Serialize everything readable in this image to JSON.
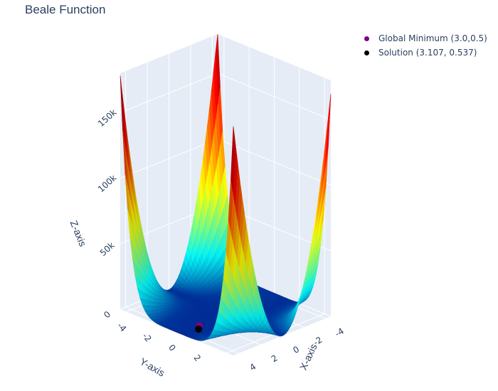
{
  "chart_data": {
    "type": "surface3d",
    "title": "Beale Function",
    "function": "(1.5 - x + x*y)^2 + (2.25 - x + x*y^2)^2 + (2.625 - x + x*y^3)^2",
    "x_axis": {
      "label": "X-axis",
      "ticks": [
        "-4",
        "-2",
        "0",
        "2",
        "4"
      ],
      "range": [
        -4.5,
        4.5
      ]
    },
    "y_axis": {
      "label": "Y-axis",
      "ticks": [
        "-4",
        "-2",
        "0",
        "2"
      ],
      "range": [
        -4.5,
        4.5
      ]
    },
    "z_axis": {
      "label": "Z-axis",
      "ticks": [
        "0",
        "50k",
        "100k",
        "150k"
      ],
      "range": [
        0,
        180000
      ]
    },
    "colorscale": "jet",
    "grid": true,
    "legend_position": "top-right",
    "points": [
      {
        "name": "Global Minimum (3.0,0.5)",
        "x": 3.0,
        "y": 0.5,
        "z": 0,
        "color": "#800080"
      },
      {
        "name": "Solution (3.107, 0.537)",
        "x": 3.107,
        "y": 0.537,
        "z": 0,
        "color": "#000000"
      }
    ]
  },
  "colors": {
    "scene_bg": "#e5ecf6",
    "grid": "#ffffff",
    "text": "#2a3f5f"
  }
}
